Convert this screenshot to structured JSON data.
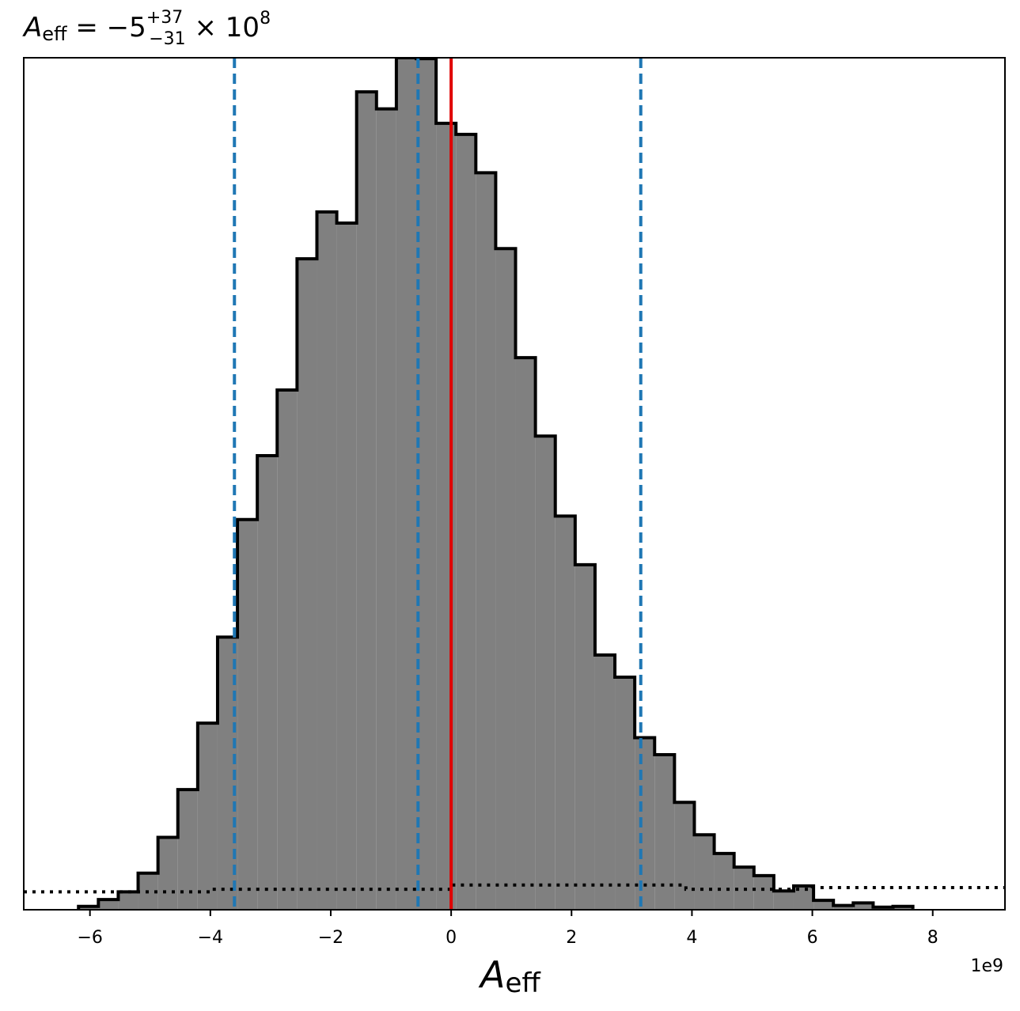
{
  "chart_data": {
    "type": "bar",
    "title_parts": {
      "symbol": "A",
      "subscript": "eff",
      "equals": " = −5",
      "upper": "+37",
      "lower": "−31",
      "times": " × 10",
      "exponent": "8"
    },
    "xlabel_parts": {
      "symbol": "A",
      "subscript": "eff"
    },
    "x_offset_label": "1e9",
    "xlim": [
      -7.1,
      9.2
    ],
    "ylim": [
      0,
      1.0
    ],
    "yticks_shown": false,
    "grid": false,
    "xticks": [
      {
        "value": -6,
        "label": "−6"
      },
      {
        "value": -4,
        "label": "−4"
      },
      {
        "value": -2,
        "label": "−2"
      },
      {
        "value": 0,
        "label": "0"
      },
      {
        "value": 2,
        "label": "2"
      },
      {
        "value": 4,
        "label": "4"
      },
      {
        "value": 6,
        "label": "6"
      },
      {
        "value": 8,
        "label": "8"
      }
    ],
    "histogram": {
      "edges": [
        -6.19,
        -5.86,
        -5.53,
        -5.2,
        -4.87,
        -4.54,
        -4.21,
        -3.88,
        -3.55,
        -3.22,
        -2.89,
        -2.56,
        -2.23,
        -1.9,
        -1.57,
        -1.24,
        -0.91,
        -0.58,
        -0.25,
        0.08,
        0.41,
        0.74,
        1.07,
        1.4,
        1.73,
        2.06,
        2.39,
        2.72,
        3.05,
        3.38,
        3.71,
        4.04,
        4.37,
        4.7,
        5.03,
        5.36,
        5.69,
        6.02,
        6.35,
        6.68,
        7.01,
        7.34,
        7.67
      ],
      "counts": [
        0.004,
        0.012,
        0.021,
        0.043,
        0.085,
        0.141,
        0.219,
        0.32,
        0.458,
        0.533,
        0.61,
        0.764,
        0.819,
        0.806,
        0.96,
        0.94,
        1.0,
        0.999,
        0.923,
        0.91,
        0.865,
        0.776,
        0.648,
        0.556,
        0.462,
        0.405,
        0.299,
        0.273,
        0.202,
        0.182,
        0.126,
        0.088,
        0.066,
        0.05,
        0.04,
        0.022,
        0.028,
        0.011,
        0.005,
        0.008,
        0.003,
        0.004,
        0.001
      ],
      "fill_color": "#808080",
      "edge_color": "#000000"
    },
    "prior_dotted": {
      "points": [
        [
          -7.1,
          0.021
        ],
        [
          -4.0,
          0.021
        ],
        [
          -4.0,
          0.024
        ],
        [
          0.0,
          0.024
        ],
        [
          0.0,
          0.029
        ],
        [
          3.9,
          0.029
        ],
        [
          3.9,
          0.024
        ],
        [
          6.0,
          0.024
        ],
        [
          6.0,
          0.026
        ],
        [
          9.2,
          0.026
        ]
      ],
      "color": "#000000",
      "style": "dotted"
    },
    "vlines": [
      {
        "x": -3.6,
        "color": "#1f77b4",
        "style": "dashed"
      },
      {
        "x": -0.55,
        "color": "#1f77b4",
        "style": "dashed"
      },
      {
        "x": 3.15,
        "color": "#1f77b4",
        "style": "dashed"
      },
      {
        "x": 0.0,
        "color": "#e00000",
        "style": "solid"
      }
    ]
  }
}
